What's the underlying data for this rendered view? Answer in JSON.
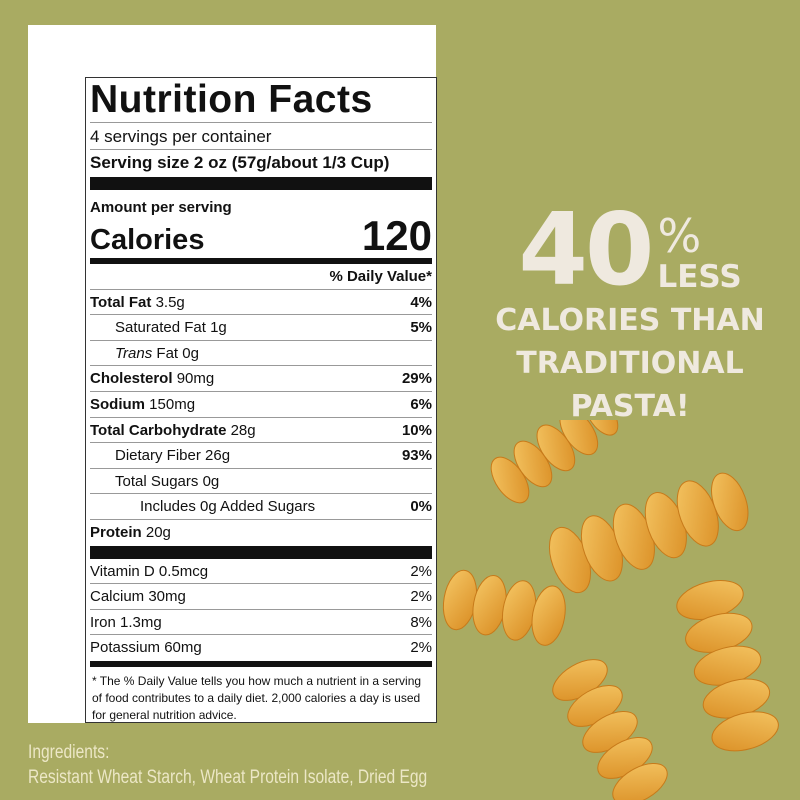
{
  "label": {
    "title": "Nutrition Facts",
    "servings": "4 servings per container",
    "serving_size": "Serving size 2 oz (57g/about 1/3 Cup)",
    "amount_per_serving": "Amount per serving",
    "calories_label": "Calories",
    "calories_value": "120",
    "dv_header": "% Daily Value*",
    "nutrients": [
      {
        "name": "Total Fat",
        "amount": "3.5g",
        "dv": "4%"
      },
      {
        "name": "Saturated Fat",
        "amount": "1g",
        "dv": "5%"
      },
      {
        "name": "Trans",
        "amount": "Fat 0g",
        "dv": ""
      },
      {
        "name": "Cholesterol",
        "amount": "90mg",
        "dv": "29%"
      },
      {
        "name": "Sodium",
        "amount": "150mg",
        "dv": "6%"
      },
      {
        "name": "Total Carbohydrate",
        "amount": "28g",
        "dv": "10%"
      },
      {
        "name": "Dietary Fiber",
        "amount": "26g",
        "dv": "93%"
      },
      {
        "name": "Total Sugars",
        "amount": "0g",
        "dv": ""
      },
      {
        "name": "Includes 0g Added Sugars",
        "amount": "",
        "dv": "0%"
      },
      {
        "name": "Protein",
        "amount": "20g",
        "dv": ""
      }
    ],
    "vitamins": [
      {
        "name": "Vitamin D 0.5mcg",
        "dv": "2%"
      },
      {
        "name": "Calcium 30mg",
        "dv": "2%"
      },
      {
        "name": "Iron 1.3mg",
        "dv": "8%"
      },
      {
        "name": "Potassium 60mg",
        "dv": "2%"
      }
    ],
    "footnote": "* The  % Daily Value tells you how much a nutrient in a serving of food contributes to a daily diet. 2,000 calories a day is used for general nutrition advice."
  },
  "promo": {
    "number": "40",
    "percent": "%",
    "less": "LESS",
    "line1": "CALORIES THAN",
    "line2": "TRADITIONAL",
    "line3": "PASTA!"
  },
  "ingredients": {
    "heading": "Ingredients:",
    "text": "Resistant Wheat Starch, Wheat Protein Isolate, Dried Egg"
  },
  "colors": {
    "background": "#a9ab62",
    "promo_text": "#efe9df",
    "pasta": "#e9a93a"
  }
}
